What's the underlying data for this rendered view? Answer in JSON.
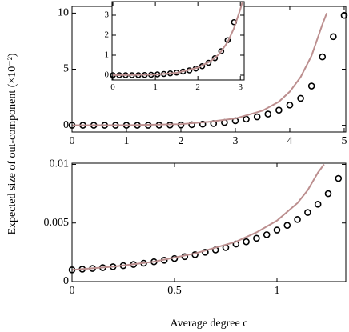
{
  "chart_data": [
    {
      "type": "line",
      "ylabel": "Expected size of out-component (×10⁻²)",
      "xlim": [
        0,
        5.03
      ],
      "ylim": [
        -0.6,
        10.6
      ],
      "xticks": [
        0,
        1,
        2,
        3,
        4,
        5
      ],
      "yticks": [
        0,
        5,
        10
      ],
      "series": [
        {
          "kind": "markers",
          "color": "#000000",
          "x": [
            0,
            0.2,
            0.4,
            0.6,
            0.8,
            1.0,
            1.2,
            1.4,
            1.6,
            1.8,
            2.0,
            2.2,
            2.4,
            2.6,
            2.8,
            3.0,
            3.2,
            3.4,
            3.6,
            3.8,
            4.0,
            4.2,
            4.4,
            4.6,
            4.8,
            5.0
          ],
          "values": [
            0,
            0,
            0,
            0,
            0,
            0,
            0,
            0,
            0.01,
            0.02,
            0.03,
            0.05,
            0.1,
            0.15,
            0.25,
            0.4,
            0.55,
            0.75,
            1.0,
            1.35,
            1.8,
            2.4,
            3.5,
            6.1,
            7.9,
            9.8
          ]
        },
        {
          "kind": "line",
          "color": "#bc8f8f",
          "x": [
            0,
            1,
            2,
            2.5,
            3,
            3.5,
            3.8,
            4.0,
            4.2,
            4.4,
            4.6,
            4.68
          ],
          "values": [
            0,
            0.01,
            0.1,
            0.3,
            0.6,
            1.3,
            2.1,
            3.0,
            4.3,
            6.2,
            9.0,
            10
          ]
        }
      ]
    },
    {
      "type": "line",
      "xlim": [
        -0.02,
        3.09
      ],
      "ylim": [
        -0.24,
        3.68
      ],
      "xticks": [
        0,
        1,
        2,
        3
      ],
      "yticks": [
        0,
        1,
        2,
        3
      ],
      "series": [
        {
          "kind": "markers",
          "color": "#000000",
          "x": [
            0,
            0.15,
            0.3,
            0.45,
            0.6,
            0.75,
            0.9,
            1.05,
            1.2,
            1.35,
            1.5,
            1.65,
            1.8,
            1.95,
            2.1,
            2.25,
            2.4,
            2.55,
            2.7,
            2.85
          ],
          "values": [
            0,
            0,
            0,
            0,
            0,
            0.01,
            0.02,
            0.04,
            0.06,
            0.09,
            0.13,
            0.18,
            0.24,
            0.33,
            0.45,
            0.62,
            0.85,
            1.2,
            1.75,
            2.65
          ]
        },
        {
          "kind": "line",
          "color": "#bc8f8f",
          "x": [
            0,
            1,
            1.5,
            2,
            2.3,
            2.5,
            2.7,
            2.85,
            3.0,
            3.05
          ],
          "values": [
            0,
            0.03,
            0.12,
            0.38,
            0.7,
            1.05,
            1.65,
            2.35,
            3.3,
            3.68
          ]
        }
      ]
    },
    {
      "type": "line",
      "xlabel": "Average degree c",
      "xlim": [
        0,
        1.336
      ],
      "ylim": [
        0,
        0.0101
      ],
      "xticks": [
        0,
        0.5,
        1
      ],
      "yticks": [
        0,
        0.005,
        0.01
      ],
      "series": [
        {
          "kind": "markers",
          "color": "#000000",
          "x": [
            0,
            0.05,
            0.1,
            0.15,
            0.2,
            0.25,
            0.3,
            0.35,
            0.4,
            0.45,
            0.5,
            0.55,
            0.6,
            0.65,
            0.7,
            0.75,
            0.8,
            0.85,
            0.9,
            0.95,
            1.0,
            1.05,
            1.1,
            1.15,
            1.2,
            1.25,
            1.3
          ],
          "values": [
            0.001,
            0.00106,
            0.00112,
            0.00119,
            0.00127,
            0.00136,
            0.00146,
            0.00157,
            0.00169,
            0.00182,
            0.00197,
            0.00213,
            0.0023,
            0.0025,
            0.0027,
            0.0029,
            0.0032,
            0.0034,
            0.0037,
            0.004,
            0.0044,
            0.0048,
            0.0053,
            0.0059,
            0.0066,
            0.0075,
            0.0088
          ]
        },
        {
          "kind": "line",
          "color": "#bc8f8f",
          "x": [
            0,
            0.2,
            0.4,
            0.6,
            0.8,
            0.9,
            1.0,
            1.1,
            1.15,
            1.2,
            1.23
          ],
          "values": [
            0.001,
            0.00127,
            0.0017,
            0.0024,
            0.0034,
            0.0042,
            0.0052,
            0.0067,
            0.0078,
            0.0093,
            0.01
          ]
        }
      ]
    }
  ]
}
